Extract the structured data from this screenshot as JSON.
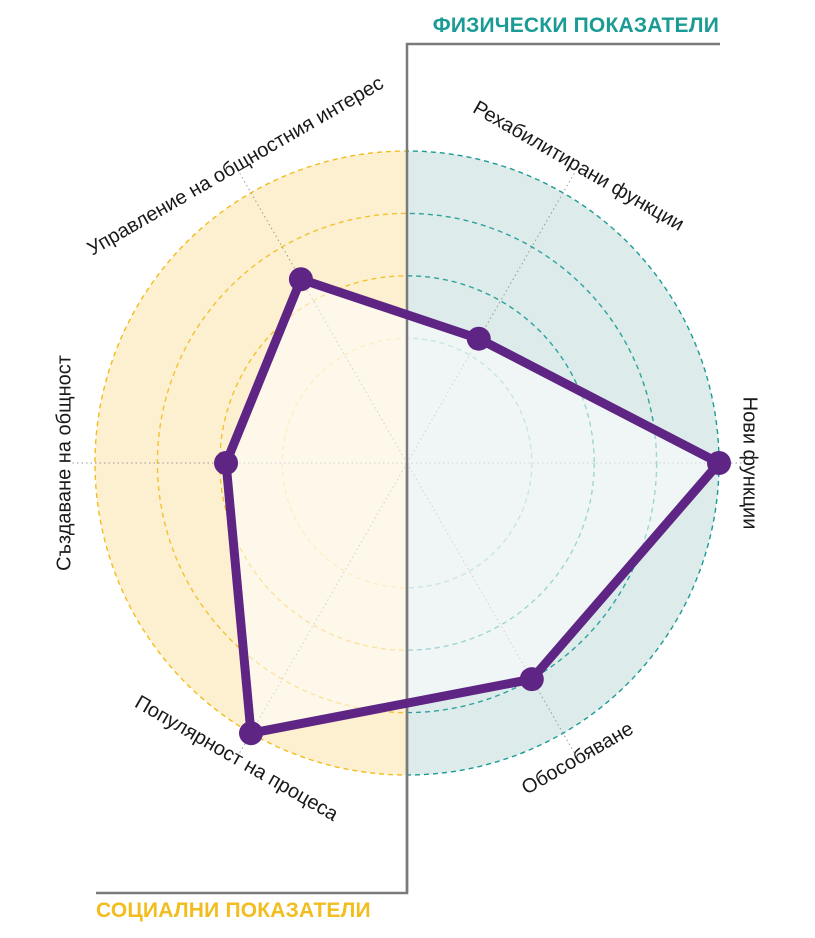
{
  "headers": {
    "physical": "ФИЗИЧЕСКИ ПОКАЗАТЕЛИ",
    "social": "СОЦИАЛНИ ПОКАЗАТЕЛИ"
  },
  "colors": {
    "physical": "#1b9b95",
    "physical_fill": "#ddebea",
    "social": "#f2bd1e",
    "social_fill": "#fdf0d0",
    "series": "#5f2584",
    "divider": "#7a7a7a"
  },
  "chart_data": {
    "type": "radar",
    "scale": {
      "min": 0,
      "max": 5,
      "rings": [
        2,
        3,
        4,
        5
      ]
    },
    "groups": [
      {
        "name": "ФИЗИЧЕСКИ ПОКАЗАТЕЛИ",
        "axes": [
          "Рехабилитирани функции",
          "Нови функции",
          "Обособяване"
        ]
      },
      {
        "name": "СОЦИАЛНИ ПОКАЗАТЕЛИ",
        "axes": [
          "Популярност на процеса",
          "Създаване на общност",
          "Управление на общностния интерес"
        ]
      }
    ],
    "axes": [
      {
        "label": "Рехабилитирани функции",
        "value": 2.3,
        "angle_deg": 60
      },
      {
        "label": "Нови функции",
        "value": 5.0,
        "angle_deg": 0
      },
      {
        "label": "Обособяване",
        "value": 4.0,
        "angle_deg": -60
      },
      {
        "label": "Популярност на процеса",
        "value": 5.0,
        "angle_deg": -120
      },
      {
        "label": "Създаване на общност",
        "value": 2.9,
        "angle_deg": 180
      },
      {
        "label": "Управление на общностния интерес",
        "value": 3.4,
        "angle_deg": 120
      }
    ]
  }
}
